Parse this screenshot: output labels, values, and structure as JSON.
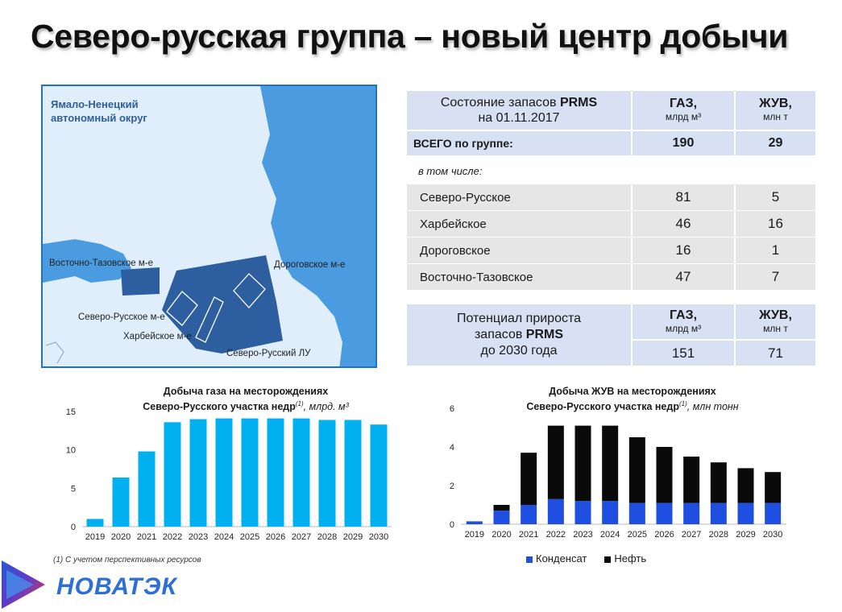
{
  "page": {
    "title": "Северо-русская группа – новый центр добычи"
  },
  "map": {
    "region_label_line1": "Ямало-Ненецкий",
    "region_label_line2": "автономный округ",
    "labels": {
      "vostochno_tazovskoe": "Восточно-Тазовское м-е",
      "dorogovskoe": "Дороговское м-е",
      "severo_russkoe": "Северо-Русское м-е",
      "kharbeyskoe": "Харбейское м-е",
      "severo_russkiy_lu": "Северо-Русский ЛУ"
    }
  },
  "reserves_table": {
    "header_line1": "Состояние запасов",
    "header_bold": "PRMS",
    "header_line2": "на 01.11.2017",
    "gas_label": "ГАЗ",
    "gas_unit": "млрд м³",
    "liquids_label": "ЖУВ",
    "liquids_unit": "млн т",
    "total_label": "ВСЕГО по группе:",
    "total_gas": "190",
    "total_liquids": "29",
    "including_label": "в том числе:",
    "rows": [
      {
        "name": "Северо-Русское",
        "gas": "81",
        "liquids": "5"
      },
      {
        "name": "Харбейское",
        "gas": "46",
        "liquids": "16"
      },
      {
        "name": "Дороговское",
        "gas": "16",
        "liquids": "1"
      },
      {
        "name": "Восточно-Тазовское",
        "gas": "47",
        "liquids": "7"
      }
    ]
  },
  "potential_table": {
    "label_line1": "Потенциал прироста",
    "label_line2_pre": "запасов",
    "label_line2_bold": "PRMS",
    "label_line3": "до 2030 года",
    "gas_label": "ГАЗ",
    "gas_unit": "млрд м³",
    "liquids_label": "ЖУВ",
    "liquids_unit": "млн т",
    "gas_value": "151",
    "liquids_value": "71"
  },
  "chart_data": [
    {
      "type": "bar",
      "title_line1": "Добыча газа на месторождениях",
      "title_line2_bold": "Северо-Русского участка недр",
      "title_sup": "(1)",
      "title_line2_rest": ", млрд. м³",
      "categories": [
        "2019",
        "2020",
        "2021",
        "2022",
        "2023",
        "2024",
        "2025",
        "2026",
        "2027",
        "2028",
        "2029",
        "2030"
      ],
      "values": [
        1.0,
        6.4,
        9.8,
        13.6,
        14.0,
        14.1,
        14.1,
        14.1,
        14.1,
        13.9,
        13.9,
        13.3
      ],
      "ylim": [
        0,
        15
      ],
      "yticks": [
        "0",
        "5",
        "10",
        "15"
      ],
      "color": "#00b0f0"
    },
    {
      "type": "bar",
      "stacked": true,
      "title_line1": "Добыча ЖУВ на месторождениях",
      "title_line2_bold": "Северо-Русского участка недр",
      "title_sup": "(1)",
      "title_line2_rest": ", млн тонн",
      "categories": [
        "2019",
        "2020",
        "2021",
        "2022",
        "2023",
        "2024",
        "2025",
        "2026",
        "2027",
        "2028",
        "2029",
        "2030"
      ],
      "series": [
        {
          "name": "Конденсат",
          "color": "#1f4fe0",
          "values": [
            0.15,
            0.7,
            1.0,
            1.3,
            1.2,
            1.2,
            1.1,
            1.1,
            1.1,
            1.1,
            1.1,
            1.1
          ]
        },
        {
          "name": "Нефть",
          "color": "#0a0a0a",
          "values": [
            0.0,
            0.3,
            2.7,
            3.8,
            3.9,
            3.9,
            3.4,
            2.9,
            2.4,
            2.1,
            1.8,
            1.6
          ]
        }
      ],
      "ylim": [
        0,
        6
      ],
      "yticks": [
        "0",
        "2",
        "4",
        "6"
      ]
    }
  ],
  "footnote": "(1) С учетом перспективных ресурсов",
  "logo": {
    "text": "НОВАТЭК"
  }
}
